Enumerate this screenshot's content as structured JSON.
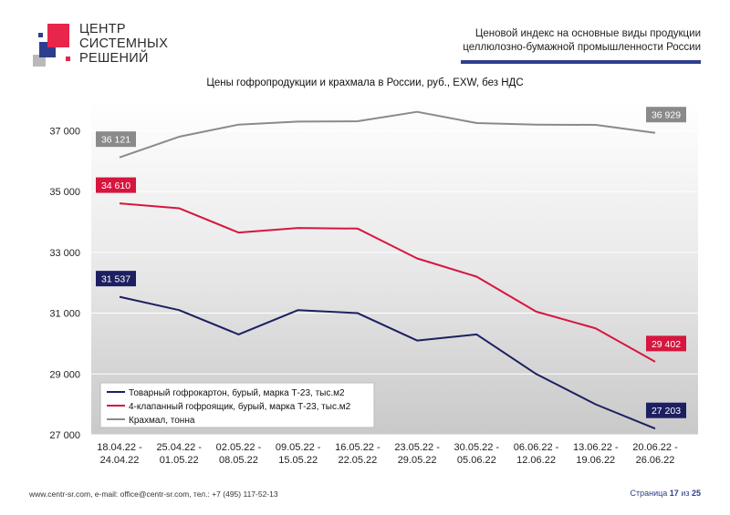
{
  "logo": {
    "lines": [
      "ЦЕНТР",
      "СИСТЕМНЫХ",
      "РЕШЕНИЙ"
    ],
    "colors": {
      "red": "#e8264b",
      "blue": "#2e3e8e",
      "gray": "#b9b9b9"
    }
  },
  "header": {
    "title_line1": "Ценовой индекс на основные виды продукции",
    "title_line2": "целлюлозно-бумажной промышленности России",
    "bar_color": "#2e3e8e"
  },
  "chart_data": {
    "type": "line",
    "title": "Цены гофропродукции и крахмала в России, руб., EXW, без НДС",
    "categories": [
      [
        "18.04.22 -",
        "24.04.22"
      ],
      [
        "25.04.22 -",
        "01.05.22"
      ],
      [
        "02.05.22 -",
        "08.05.22"
      ],
      [
        "09.05.22 -",
        "15.05.22"
      ],
      [
        "16.05.22 -",
        "22.05.22"
      ],
      [
        "23.05.22 -",
        "29.05.22"
      ],
      [
        "30.05.22 -",
        "05.06.22"
      ],
      [
        "06.06.22 -",
        "12.06.22"
      ],
      [
        "13.06.22 -",
        "19.06.22"
      ],
      [
        "20.06.22 -",
        "26.06.22"
      ]
    ],
    "ylim": [
      27000,
      38000
    ],
    "yticks": [
      27000,
      29000,
      31000,
      33000,
      35000,
      37000
    ],
    "ytick_labels": [
      "27 000",
      "29 000",
      "31 000",
      "33 000",
      "35 000",
      "37 000"
    ],
    "grid": true,
    "legend_position": "bottom-left",
    "series": [
      {
        "name": "Товарный гофрокартон, бурый, марка Т-23, тыс.м2",
        "color": "#1c2060",
        "values": [
          31537,
          31100,
          30300,
          31100,
          31000,
          30100,
          30300,
          29000,
          28000,
          27203
        ],
        "start_label": "31 537",
        "end_label": "27 203"
      },
      {
        "name": "4-клапанный гофроящик, бурый, марка Т-23, тыс.м2",
        "color": "#d6163e",
        "values": [
          34610,
          34450,
          33650,
          33800,
          33780,
          32800,
          32200,
          31050,
          30500,
          29402
        ],
        "start_label": "34 610",
        "end_label": "29 402"
      },
      {
        "name": "Крахмал, тонна",
        "color": "#8a8a8a",
        "values": [
          36121,
          36800,
          37200,
          37300,
          37310,
          37620,
          37250,
          37200,
          37190,
          36929
        ],
        "start_label": "36 121",
        "end_label": "36 929"
      }
    ]
  },
  "footer": {
    "contacts": "www.centr-sr.com, e-mail: office@centr-sr.com, тел.: +7 (495) 117-52-13",
    "page_word": "Страница",
    "page_current": "17",
    "page_of": "из",
    "page_total": "25"
  }
}
